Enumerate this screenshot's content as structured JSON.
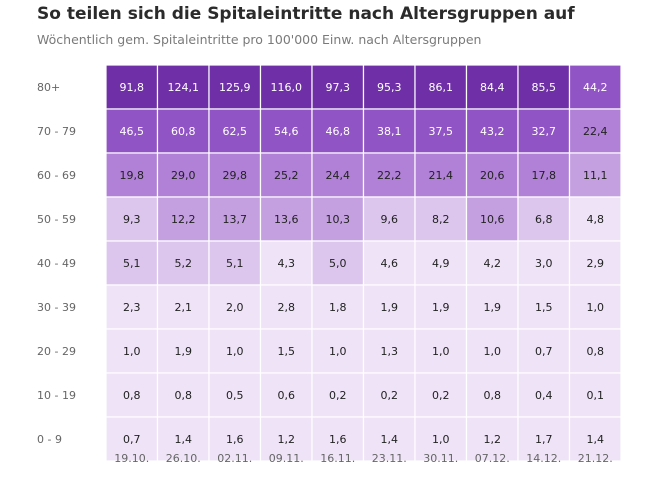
{
  "title": "So teilen sich die Spitaleintritte nach Altersgruppen auf",
  "subtitle": "Wöchentlich gem. Spitaleintritte pro 100'000 Einw. nach Altersgruppen",
  "chart_data": {
    "type": "heatmap",
    "x": [
      "19.10.",
      "26.10.",
      "02.11.",
      "09.11.",
      "16.11.",
      "23.11.",
      "30.11.",
      "07.12.",
      "14.12.",
      "21.12."
    ],
    "y": [
      "80+",
      "70 - 79",
      "60 - 69",
      "50 - 59",
      "40 - 49",
      "30 - 39",
      "20 - 29",
      "10 - 19",
      "0 - 9"
    ],
    "values": [
      [
        "91,8",
        "124,1",
        "125,9",
        "116,0",
        "97,3",
        "95,3",
        "86,1",
        "84,4",
        "85,5",
        "44,2"
      ],
      [
        "46,5",
        "60,8",
        "62,5",
        "54,6",
        "46,8",
        "38,1",
        "37,5",
        "43,2",
        "32,7",
        "22,4"
      ],
      [
        "19,8",
        "29,0",
        "29,8",
        "25,2",
        "24,4",
        "22,2",
        "21,4",
        "20,6",
        "17,8",
        "11,1"
      ],
      [
        "9,3",
        "12,2",
        "13,7",
        "13,6",
        "10,3",
        "9,6",
        "8,2",
        "10,6",
        "6,8",
        "4,8"
      ],
      [
        "5,1",
        "5,2",
        "5,1",
        "4,3",
        "5,0",
        "4,6",
        "4,9",
        "4,2",
        "3,0",
        "2,9"
      ],
      [
        "2,3",
        "2,1",
        "2,0",
        "2,8",
        "1,8",
        "1,9",
        "1,9",
        "1,9",
        "1,5",
        "1,0"
      ],
      [
        "1,0",
        "1,9",
        "1,0",
        "1,5",
        "1,0",
        "1,3",
        "1,0",
        "1,0",
        "0,7",
        "0,8"
      ],
      [
        "0,8",
        "0,8",
        "0,5",
        "0,6",
        "0,2",
        "0,2",
        "0,2",
        "0,8",
        "0,4",
        "0,1"
      ],
      [
        "0,7",
        "1,4",
        "1,6",
        "1,2",
        "1,6",
        "1,4",
        "1,0",
        "1,2",
        "1,7",
        "1,4"
      ]
    ],
    "color_scale": [
      {
        "min": 80,
        "color": "#6f2fa6",
        "text": "#ffffff"
      },
      {
        "min": 30,
        "color": "#9154c4",
        "text": "#ffffff"
      },
      {
        "min": 15,
        "color": "#b081d6",
        "text": "#222222"
      },
      {
        "min": 10,
        "color": "#c4a0e0",
        "text": "#222222"
      },
      {
        "min": 5,
        "color": "#dcc6ed",
        "text": "#222222"
      },
      {
        "min": 0,
        "color": "#efe3f7",
        "text": "#222222"
      }
    ]
  }
}
